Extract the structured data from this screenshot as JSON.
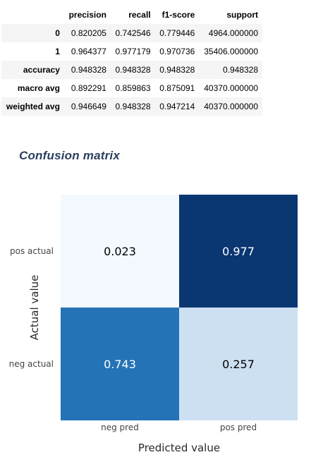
{
  "report": {
    "columns": [
      "",
      "precision",
      "recall",
      "f1-score",
      "support"
    ],
    "rows": [
      {
        "label": "0",
        "values": [
          "0.820205",
          "0.742546",
          "0.779446",
          "4964.000000"
        ]
      },
      {
        "label": "1",
        "values": [
          "0.964377",
          "0.977179",
          "0.970736",
          "35406.000000"
        ]
      },
      {
        "label": "accuracy",
        "values": [
          "0.948328",
          "0.948328",
          "0.948328",
          "0.948328"
        ]
      },
      {
        "label": "macro avg",
        "values": [
          "0.892291",
          "0.859863",
          "0.875091",
          "40370.000000"
        ]
      },
      {
        "label": "weighted avg",
        "values": [
          "0.946649",
          "0.948328",
          "0.947214",
          "40370.000000"
        ]
      }
    ]
  },
  "section_title": "Confusion matrix",
  "colors": {
    "scale": [
      "#f7fbff",
      "#c6dbef",
      "#2171b5",
      "#08306b"
    ],
    "text_dark": "#000000",
    "text_light": "#ffffff"
  },
  "chart_data": {
    "type": "heatmap",
    "colorscale": "Blues",
    "x": [
      "neg pred",
      "pos pred"
    ],
    "y": [
      "neg actual",
      "pos actual"
    ],
    "z": [
      [
        0.743,
        0.257
      ],
      [
        0.023,
        0.977
      ]
    ],
    "value_labels": [
      [
        "0.743",
        "0.257"
      ],
      [
        "0.023",
        "0.977"
      ]
    ],
    "xlabel": "Predicted value",
    "ylabel": "Actual value",
    "zlim": [
      0,
      1
    ]
  }
}
